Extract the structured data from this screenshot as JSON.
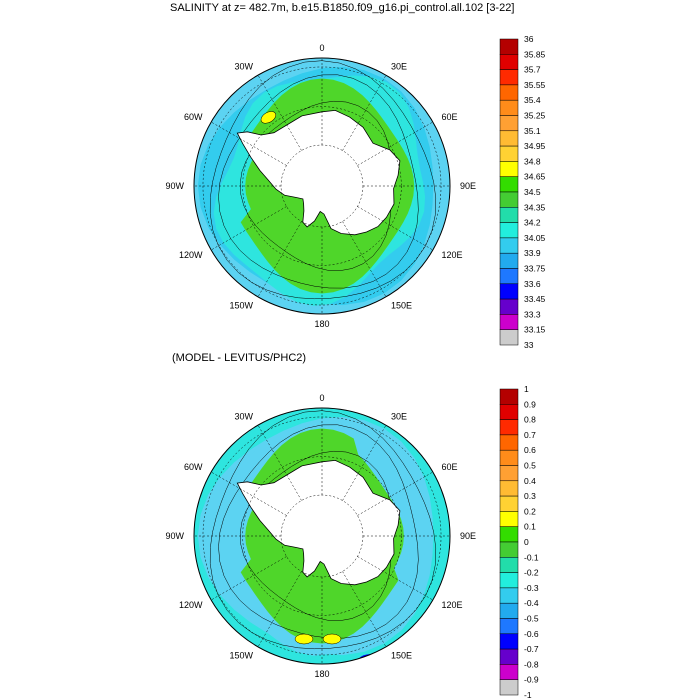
{
  "panels": [
    {
      "title": "SALINITY at z= 482.7m, b.e15.B1850.f09_g16.pi_control.all.102 [3-22]",
      "lon_labels": [
        "0",
        "30E",
        "60E",
        "90E",
        "120E",
        "150E",
        "180",
        "150W",
        "120W",
        "90W",
        "60W",
        "30W"
      ],
      "colorbar": {
        "labels": [
          "36",
          "35.85",
          "35.7",
          "35.55",
          "35.4",
          "35.25",
          "35.1",
          "34.95",
          "34.8",
          "34.65",
          "34.5",
          "34.35",
          "34.2",
          "34.05",
          "33.9",
          "33.75",
          "33.6",
          "33.45",
          "33.3",
          "33.15",
          "33"
        ],
        "colors": [
          "#b40000",
          "#e00000",
          "#ff2a00",
          "#ff6600",
          "#ff8c1a",
          "#ffa033",
          "#ffbb33",
          "#ffd233",
          "#ffff00",
          "#33dd00",
          "#44cc33",
          "#22ddaa",
          "#22eedd",
          "#33ccee",
          "#22aaee",
          "#1e78ff",
          "#0000ff",
          "#6600cc",
          "#cc00cc",
          "#cccccc"
        ]
      },
      "fields": {
        "ocean_base": "#5cd3f2",
        "inner_band": "#2ee5df",
        "core": "#4fd62a",
        "pocket": "#ffff00"
      }
    },
    {
      "title": "(MODEL - LEVITUS/PHC2)",
      "lon_labels": [
        "0",
        "30E",
        "60E",
        "90E",
        "120E",
        "150E",
        "180",
        "150W",
        "120W",
        "90W",
        "60W",
        "30W"
      ],
      "colorbar": {
        "labels": [
          "1",
          "0.9",
          "0.8",
          "0.7",
          "0.6",
          "0.5",
          "0.4",
          "0.3",
          "0.2",
          "0.1",
          "0",
          "-0.1",
          "-0.2",
          "-0.3",
          "-0.4",
          "-0.5",
          "-0.6",
          "-0.7",
          "-0.8",
          "-0.9",
          "-1"
        ],
        "colors": [
          "#b40000",
          "#e00000",
          "#ff2a00",
          "#ff6600",
          "#ff8c1a",
          "#ffa033",
          "#ffbb33",
          "#ffd233",
          "#ffff00",
          "#33dd00",
          "#44cc33",
          "#22ddaa",
          "#22eedd",
          "#33ccee",
          "#22aaee",
          "#1e78ff",
          "#0000ff",
          "#6600cc",
          "#cc00cc",
          "#cccccc"
        ]
      },
      "fields": {
        "ocean_base": "#2ee5df",
        "inner_band": "#5cd3f2",
        "core": "#4fd62a",
        "pocket": "#ffff00"
      }
    }
  ],
  "map_colors": {
    "land": "#ffffff",
    "coast": "#000000",
    "grid": "#000000",
    "lowest": "#777777"
  }
}
